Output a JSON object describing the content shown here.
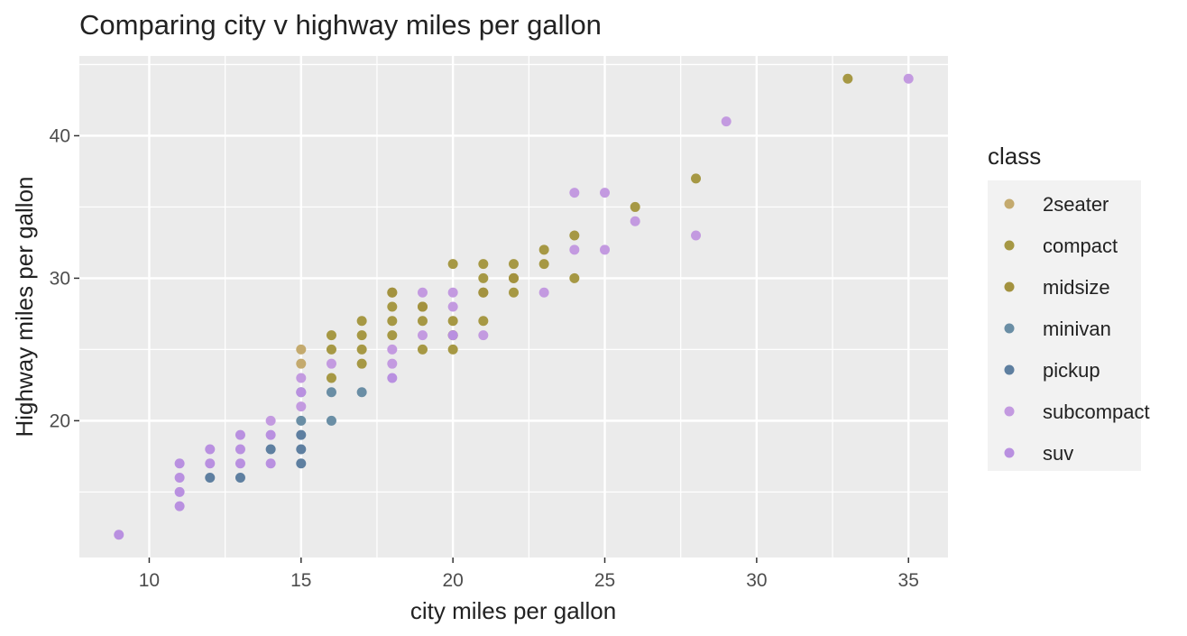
{
  "chart_data": {
    "type": "scatter",
    "title": "Comparing city v highway miles per gallon",
    "xlabel": "city miles per gallon",
    "ylabel": "Highway miles per gallon",
    "xlim": [
      7.7,
      36.3
    ],
    "ylim": [
      10.4,
      45.6
    ],
    "x_ticks": [
      10,
      15,
      20,
      25,
      30,
      35
    ],
    "y_ticks": [
      20,
      30,
      40
    ],
    "grid": true,
    "legend": {
      "title": "class",
      "position": "right",
      "entries": [
        "2seater",
        "compact",
        "midsize",
        "minivan",
        "pickup",
        "subcompact",
        "suv"
      ]
    },
    "colors": {
      "2seater": "#c4aa6e",
      "compact": "#a69844",
      "midsize": "#a3923f",
      "minivan": "#6a8ea5",
      "pickup": "#5e7fa0",
      "subcompact": "#c39ae0",
      "suv": "#b990e0"
    },
    "series": [
      {
        "name": "2seater",
        "points": [
          [
            15,
            25
          ],
          [
            15,
            24
          ]
        ]
      },
      {
        "name": "compact",
        "points": [
          [
            16,
            26
          ],
          [
            16,
            25
          ],
          [
            16,
            23
          ],
          [
            17,
            27
          ],
          [
            17,
            26
          ],
          [
            17,
            25
          ],
          [
            17,
            24
          ],
          [
            18,
            29
          ],
          [
            18,
            28
          ],
          [
            18,
            27
          ],
          [
            18,
            26
          ],
          [
            19,
            28
          ],
          [
            19,
            27
          ],
          [
            19,
            25
          ],
          [
            20,
            31
          ],
          [
            20,
            27
          ],
          [
            20,
            26
          ],
          [
            20,
            25
          ],
          [
            21,
            31
          ],
          [
            21,
            30
          ],
          [
            21,
            29
          ],
          [
            21,
            27
          ],
          [
            22,
            31
          ],
          [
            22,
            30
          ],
          [
            22,
            29
          ],
          [
            23,
            32
          ],
          [
            23,
            31
          ],
          [
            24,
            33
          ],
          [
            24,
            30
          ],
          [
            26,
            35
          ],
          [
            28,
            37
          ],
          [
            33,
            44
          ]
        ]
      },
      {
        "name": "midsize",
        "points": [
          [
            18,
            29
          ],
          [
            19,
            28
          ],
          [
            20,
            26
          ],
          [
            21,
            29
          ],
          [
            22,
            30
          ]
        ]
      },
      {
        "name": "minivan",
        "points": [
          [
            15,
            22
          ],
          [
            16,
            22
          ],
          [
            17,
            22
          ],
          [
            15,
            20
          ],
          [
            16,
            20
          ]
        ]
      },
      {
        "name": "pickup",
        "points": [
          [
            12,
            16
          ],
          [
            13,
            16
          ],
          [
            14,
            18
          ],
          [
            15,
            19
          ],
          [
            15,
            18
          ],
          [
            15,
            17
          ]
        ]
      },
      {
        "name": "subcompact",
        "points": [
          [
            14,
            20
          ],
          [
            15,
            23
          ],
          [
            15,
            21
          ],
          [
            16,
            24
          ],
          [
            18,
            25
          ],
          [
            18,
            24
          ],
          [
            19,
            29
          ],
          [
            19,
            26
          ],
          [
            20,
            29
          ],
          [
            20,
            28
          ],
          [
            21,
            26
          ],
          [
            23,
            29
          ],
          [
            24,
            36
          ],
          [
            24,
            32
          ],
          [
            25,
            36
          ],
          [
            25,
            32
          ],
          [
            26,
            34
          ],
          [
            28,
            33
          ],
          [
            29,
            41
          ],
          [
            35,
            44
          ]
        ]
      },
      {
        "name": "suv",
        "points": [
          [
            9,
            12
          ],
          [
            11,
            17
          ],
          [
            11,
            16
          ],
          [
            11,
            15
          ],
          [
            11,
            14
          ],
          [
            12,
            18
          ],
          [
            12,
            17
          ],
          [
            13,
            19
          ],
          [
            13,
            18
          ],
          [
            13,
            17
          ],
          [
            14,
            19
          ],
          [
            14,
            17
          ],
          [
            15,
            22
          ],
          [
            18,
            23
          ],
          [
            20,
            26
          ]
        ]
      }
    ]
  }
}
